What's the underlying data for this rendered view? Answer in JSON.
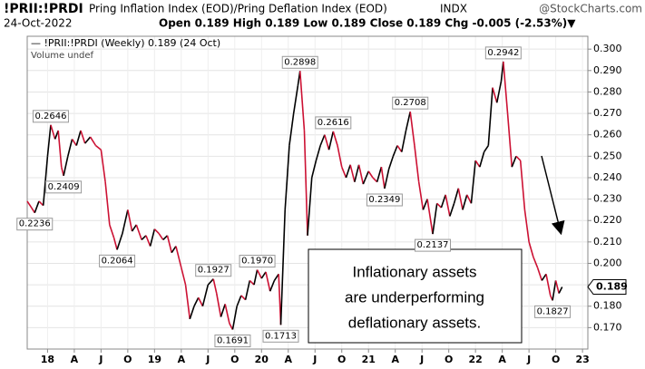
{
  "chart_data": {
    "type": "line",
    "header": {
      "symbol": "!PRII:!PRDI",
      "name": "Pring Inflation Index (EOD)/Pring Deflation Index (EOD)",
      "exchange": "INDX",
      "source": "@StockCharts.com",
      "date": "24-Oct-2022",
      "quote": "Open 0.189  High 0.189  Low 0.189  Close 0.189  Chg -0.005 (-2.53%)▼"
    },
    "legend": [
      "— !PRII:!PRDI (Weekly) 0.189 (24 Oct)",
      "Volume undef"
    ],
    "annotation": [
      "Inflationary assets",
      "are underperforming",
      "deflationary assets."
    ],
    "up_color": "#000000",
    "down_color": "#cc1133",
    "grid": true,
    "x": [
      2017.81,
      2017.85,
      2017.88,
      2017.92,
      2017.96,
      2018.0,
      2018.03,
      2018.07,
      2018.1,
      2018.13,
      2018.15,
      2018.19,
      2018.23,
      2018.27,
      2018.31,
      2018.35,
      2018.4,
      2018.45,
      2018.5,
      2018.54,
      2018.58,
      2018.62,
      2018.65,
      2018.7,
      2018.75,
      2018.79,
      2018.83,
      2018.88,
      2018.92,
      2018.96,
      2019.0,
      2019.04,
      2019.08,
      2019.12,
      2019.16,
      2019.2,
      2019.25,
      2019.29,
      2019.33,
      2019.37,
      2019.41,
      2019.45,
      2019.5,
      2019.55,
      2019.58,
      2019.62,
      2019.66,
      2019.7,
      2019.73,
      2019.77,
      2019.81,
      2019.85,
      2019.89,
      2019.93,
      2019.96,
      2020.0,
      2020.04,
      2020.08,
      2020.12,
      2020.16,
      2020.18,
      2020.22,
      2020.26,
      2020.3,
      2020.34,
      2020.36,
      2020.4,
      2020.43,
      2020.47,
      2020.51,
      2020.55,
      2020.59,
      2020.63,
      2020.67,
      2020.71,
      2020.75,
      2020.79,
      2020.83,
      2020.87,
      2020.91,
      2020.95,
      2021.0,
      2021.04,
      2021.08,
      2021.12,
      2021.15,
      2021.19,
      2021.23,
      2021.27,
      2021.31,
      2021.35,
      2021.39,
      2021.43,
      2021.47,
      2021.51,
      2021.55,
      2021.6,
      2021.64,
      2021.68,
      2021.72,
      2021.76,
      2021.8,
      2021.84,
      2021.88,
      2021.92,
      2021.96,
      2022.0,
      2022.04,
      2022.08,
      2022.12,
      2022.16,
      2022.2,
      2022.24,
      2022.26,
      2022.3,
      2022.34,
      2022.38,
      2022.42,
      2022.46,
      2022.5,
      2022.54,
      2022.58,
      2022.62,
      2022.66,
      2022.7,
      2022.72,
      2022.75,
      2022.78,
      2022.81
    ],
    "series": [
      {
        "name": "!PRII:!PRDI",
        "values": [
          0.229,
          0.226,
          0.2236,
          0.229,
          0.227,
          0.25,
          0.2646,
          0.258,
          0.262,
          0.245,
          0.2409,
          0.25,
          0.258,
          0.255,
          0.262,
          0.256,
          0.259,
          0.255,
          0.253,
          0.238,
          0.218,
          0.212,
          0.2064,
          0.214,
          0.225,
          0.215,
          0.218,
          0.211,
          0.213,
          0.208,
          0.216,
          0.214,
          0.211,
          0.213,
          0.205,
          0.208,
          0.198,
          0.19,
          0.174,
          0.18,
          0.184,
          0.18,
          0.19,
          0.1927,
          0.186,
          0.175,
          0.181,
          0.172,
          0.1691,
          0.18,
          0.185,
          0.183,
          0.192,
          0.19,
          0.197,
          0.193,
          0.196,
          0.187,
          0.192,
          0.195,
          0.1713,
          0.225,
          0.255,
          0.27,
          0.283,
          0.2898,
          0.262,
          0.213,
          0.24,
          0.248,
          0.255,
          0.26,
          0.253,
          0.2616,
          0.255,
          0.245,
          0.24,
          0.246,
          0.238,
          0.246,
          0.237,
          0.243,
          0.24,
          0.238,
          0.245,
          0.2349,
          0.244,
          0.25,
          0.255,
          0.252,
          0.262,
          0.2708,
          0.255,
          0.238,
          0.225,
          0.23,
          0.2137,
          0.228,
          0.226,
          0.232,
          0.222,
          0.228,
          0.235,
          0.225,
          0.232,
          0.228,
          0.248,
          0.245,
          0.252,
          0.255,
          0.282,
          0.275,
          0.285,
          0.2942,
          0.27,
          0.245,
          0.25,
          0.248,
          0.225,
          0.21,
          0.203,
          0.198,
          0.192,
          0.195,
          0.185,
          0.1827,
          0.192,
          0.186,
          0.189
        ],
        "value_labels": [
          null,
          null,
          "0.2236",
          null,
          null,
          null,
          "0.2646",
          null,
          null,
          null,
          "0.2409",
          null,
          null,
          null,
          null,
          null,
          null,
          null,
          null,
          null,
          null,
          null,
          "0.2064",
          null,
          null,
          null,
          null,
          null,
          null,
          null,
          null,
          null,
          null,
          null,
          null,
          null,
          null,
          null,
          null,
          null,
          null,
          null,
          null,
          "0.1927",
          null,
          null,
          null,
          null,
          "0.1691",
          null,
          null,
          null,
          null,
          null,
          "0.1970",
          null,
          null,
          null,
          null,
          null,
          "0.1713",
          null,
          null,
          null,
          null,
          "0.2898",
          null,
          null,
          null,
          null,
          null,
          null,
          null,
          "0.2616",
          null,
          null,
          null,
          null,
          null,
          null,
          null,
          null,
          null,
          null,
          null,
          "0.2349",
          null,
          null,
          null,
          null,
          null,
          "0.2708",
          null,
          null,
          null,
          null,
          "0.2137",
          null,
          null,
          null,
          null,
          null,
          null,
          null,
          null,
          null,
          null,
          null,
          null,
          null,
          null,
          null,
          null,
          "0.2942",
          null,
          null,
          null,
          null,
          null,
          null,
          null,
          null,
          null,
          null,
          null,
          "0.1827",
          null,
          null,
          null
        ]
      }
    ],
    "xlim": [
      2017.81,
      2023.05
    ],
    "xticks": [
      {
        "value": 2018,
        "label": "18"
      },
      {
        "value": 2018.25,
        "label": "A"
      },
      {
        "value": 2018.5,
        "label": "J"
      },
      {
        "value": 2018.75,
        "label": "O"
      },
      {
        "value": 2019,
        "label": "19"
      },
      {
        "value": 2019.25,
        "label": "A"
      },
      {
        "value": 2019.5,
        "label": "J"
      },
      {
        "value": 2019.75,
        "label": "O"
      },
      {
        "value": 2020,
        "label": "20"
      },
      {
        "value": 2020.25,
        "label": "A"
      },
      {
        "value": 2020.5,
        "label": "J"
      },
      {
        "value": 2020.75,
        "label": "O"
      },
      {
        "value": 2021,
        "label": "21"
      },
      {
        "value": 2021.25,
        "label": "A"
      },
      {
        "value": 2021.5,
        "label": "J"
      },
      {
        "value": 2021.75,
        "label": "O"
      },
      {
        "value": 2022,
        "label": "22"
      },
      {
        "value": 2022.25,
        "label": "A"
      },
      {
        "value": 2022.5,
        "label": "J"
      },
      {
        "value": 2022.75,
        "label": "O"
      },
      {
        "value": 2023,
        "label": "23"
      }
    ],
    "ylim": [
      0.16,
      0.306
    ],
    "yticks": [
      {
        "value": 0.17,
        "label": "0.170"
      },
      {
        "value": 0.18,
        "label": "0.180"
      },
      {
        "value": 0.19,
        "label": "0.190"
      },
      {
        "value": 0.2,
        "label": "0.200"
      },
      {
        "value": 0.21,
        "label": "0.210"
      },
      {
        "value": 0.22,
        "label": "0.220"
      },
      {
        "value": 0.23,
        "label": "0.230"
      },
      {
        "value": 0.24,
        "label": "0.240"
      },
      {
        "value": 0.25,
        "label": "0.250"
      },
      {
        "value": 0.26,
        "label": "0.260"
      },
      {
        "value": 0.27,
        "label": "0.270"
      },
      {
        "value": 0.28,
        "label": "0.280"
      },
      {
        "value": 0.29,
        "label": "0.290"
      },
      {
        "value": 0.3,
        "label": "0.300"
      }
    ]
  }
}
